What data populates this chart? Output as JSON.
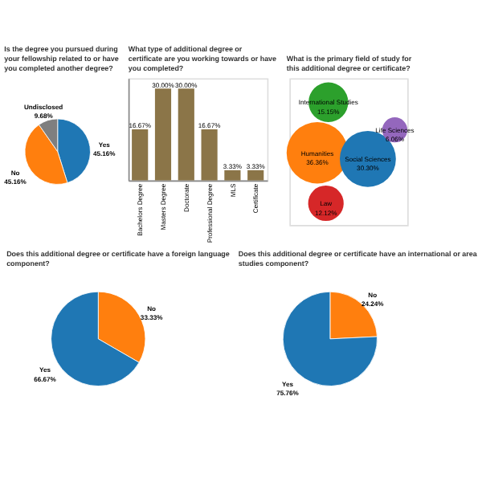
{
  "chart_data": [
    {
      "type": "pie",
      "title": "Is the degree you pursued during your fellowship related to or have you completed another degree?",
      "categories": [
        "Yes",
        "No",
        "Undisclosed"
      ],
      "values": [
        45.16,
        45.16,
        9.68
      ],
      "colors": [
        "#1f77b4",
        "#ff7f0e",
        "#7f7f7f"
      ],
      "value_labels": [
        "45.16%",
        "45.16%",
        "9.68%"
      ]
    },
    {
      "type": "bar",
      "title": "What type of additional degree or certificate are you working towards or have you completed?",
      "categories": [
        "Bachelors Degree",
        "Masters Degree",
        "Doctorate",
        "Professional Degree",
        "MLS",
        "Certificate"
      ],
      "values": [
        16.67,
        30.0,
        30.0,
        16.67,
        3.33,
        3.33
      ],
      "color": "#8b7548",
      "value_labels": [
        "16.67%",
        "30.00%",
        "30.00%",
        "16.67%",
        "3.33%",
        "3.33%"
      ],
      "ylim": [
        0,
        33.34
      ],
      "tick_labels": "x"
    },
    {
      "type": "other",
      "title": "What is the primary field of study for this additional degree or certificate?",
      "categories": [
        "Humanities",
        "International Studies",
        "Social Sciences",
        "Life Sciences",
        "Law"
      ],
      "values": [
        36.36,
        15.15,
        30.3,
        6.06,
        12.12
      ],
      "colors": [
        "#ff7f0e",
        "#2ca02c",
        "#1f77b4",
        "#9467bd",
        "#d62728"
      ],
      "value_labels": [
        "36.36%",
        "15.15%",
        "30.30%",
        "6.06%",
        "12.12%"
      ]
    },
    {
      "type": "pie",
      "title": "Does this additional degree or certificate have a foreign language component?",
      "categories": [
        "No",
        "Yes"
      ],
      "values": [
        33.33,
        66.67
      ],
      "colors": [
        "#ff7f0e",
        "#1f77b4"
      ],
      "value_labels": [
        "33.33%",
        "66.67%"
      ]
    },
    {
      "type": "pie",
      "title": "Does this additional degree or certificate have an international or area studies component?",
      "categories": [
        "No",
        "Yes"
      ],
      "values": [
        24.24,
        75.76
      ],
      "colors": [
        "#ff7f0e",
        "#1f77b4"
      ],
      "value_labels": [
        "24.24%",
        "75.76%"
      ]
    }
  ]
}
